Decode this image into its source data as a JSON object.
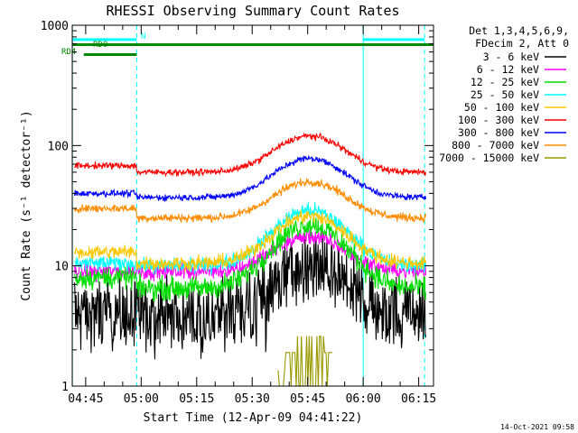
{
  "chart_data": {
    "type": "line",
    "title": "RHESSI Observing Summary Count Rates",
    "xlabel": "Start Time (12-Apr-09 04:41:22)",
    "ylabel": "Count Rate (s⁻¹ detector⁻¹)",
    "y_scale": "log",
    "ylim": [
      1,
      1000
    ],
    "xlim_minutes": [
      41.37,
      139.0
    ],
    "x_ticks": [
      {
        "label": "04:45",
        "minutes": 45
      },
      {
        "label": "05:00",
        "minutes": 60
      },
      {
        "label": "05:15",
        "minutes": 75
      },
      {
        "label": "05:30",
        "minutes": 90
      },
      {
        "label": "05:45",
        "minutes": 105
      },
      {
        "label": "06:00",
        "minutes": 120
      },
      {
        "label": "06:15",
        "minutes": 135
      }
    ],
    "y_ticks": [
      {
        "label": "1",
        "value": 1
      },
      {
        "label": "10",
        "value": 10
      },
      {
        "label": "100",
        "value": 100
      },
      {
        "label": "1000",
        "value": 1000
      }
    ],
    "legend_header": [
      "Det 1,3,4,5,6,9,",
      "FDecim 2, Att 0"
    ],
    "legend_placement": "right",
    "series": [
      {
        "name": "3 - 6 keV",
        "color": "#000000",
        "pre": 4,
        "base": 4,
        "peak": 9.5,
        "floor": 1.9
      },
      {
        "name": "6 - 12 keV",
        "color": "#ff00ff",
        "pre": 9,
        "base": 9,
        "peak": 17.5
      },
      {
        "name": "12 - 25 keV",
        "color": "#00dd00",
        "pre": 8,
        "base": 6.5,
        "peak": 22
      },
      {
        "name": "25 - 50 keV",
        "color": "#00ffff",
        "pre": 10.5,
        "base": 10,
        "peak": 29
      },
      {
        "name": "50 - 100 keV",
        "color": "#ffc800",
        "pre": 13,
        "base": 10.5,
        "peak": 26
      },
      {
        "name": "100 - 300 keV",
        "color": "#ff0000",
        "pre": 68,
        "base": 60,
        "peak": 120
      },
      {
        "name": "300 - 800 keV",
        "color": "#0000ff",
        "pre": 40,
        "base": 37,
        "peak": 78
      },
      {
        "name": "800 - 7000 keV",
        "color": "#ff8c00",
        "pre": 30,
        "base": 25,
        "peak": 50
      },
      {
        "name": "7000 - 15000 keV",
        "color": "#999900",
        "pre": 0,
        "base": 0,
        "peak": 2.6
      }
    ],
    "flags": [
      {
        "label": "N",
        "color": "#00ffff",
        "x_start": 41.37,
        "x_end": 58.8,
        "value": 760
      },
      {
        "label": "",
        "color": "#00ffff",
        "x_start": 120.0,
        "x_end": 136.6,
        "value": 760
      },
      {
        "label": "RD0",
        "color": "#008800",
        "x_start": 41.37,
        "x_end": 139.0,
        "value": 690
      },
      {
        "label": "RD4",
        "color": "#008800",
        "x_start": 44.5,
        "x_end": 58.8,
        "value": 570
      }
    ],
    "night_lines_minutes": [
      41.4,
      58.8,
      120.0,
      136.6
    ],
    "timestamp": "14-Oct-2021 09:58"
  }
}
